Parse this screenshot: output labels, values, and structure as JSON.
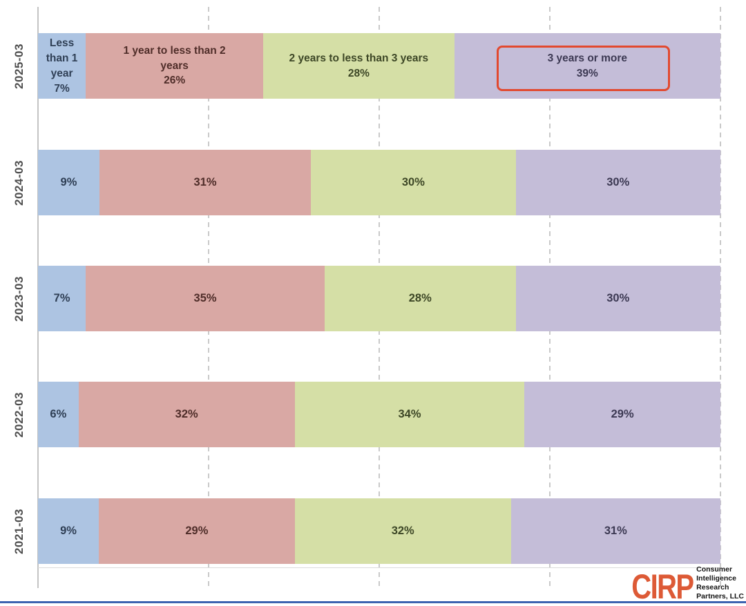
{
  "chart_data": {
    "type": "bar",
    "variant": "horizontal-stacked-100pct",
    "title": "",
    "categories": [
      "2025-03",
      "2024-03",
      "2023-03",
      "2022-03",
      "2021-03"
    ],
    "series": [
      {
        "name": "Less than 1 year",
        "color": "#adc4e2",
        "label_color": "#2f3f55",
        "values": [
          7,
          9,
          7,
          6,
          9
        ]
      },
      {
        "name": "1 year to less than 2 years",
        "color": "#d9a8a4",
        "label_color": "#4f2d29",
        "values": [
          26,
          31,
          35,
          32,
          29
        ]
      },
      {
        "name": "2 years to less than 3 years",
        "color": "#d5dfa6",
        "label_color": "#3d4726",
        "values": [
          28,
          30,
          28,
          34,
          32
        ]
      },
      {
        "name": "3 years or more",
        "color": "#c4bdd8",
        "label_color": "#3c3953",
        "values": [
          39,
          30,
          30,
          29,
          31
        ]
      }
    ],
    "value_suffix": "%",
    "first_row_shows_series_names": true,
    "axis": {
      "label_color": "#4f4f4f",
      "gridline_color": "#c9c9c9",
      "gridline_positions_pct": [
        0,
        25,
        50,
        75,
        100
      ],
      "gridline_style": "dashed-vertical"
    },
    "legend": "none",
    "highlight": {
      "category": "2025-03",
      "series": "3 years or more",
      "value_label": "3 years or more 39%",
      "box_color": "#e2492f"
    }
  },
  "branding": {
    "logo_text": "CIRP",
    "logo_color": "#dd5a36",
    "tagline_lines": [
      "Consumer",
      "Intelligence",
      "Research",
      "Partners, LLC"
    ],
    "tagline_color": "#121212"
  }
}
